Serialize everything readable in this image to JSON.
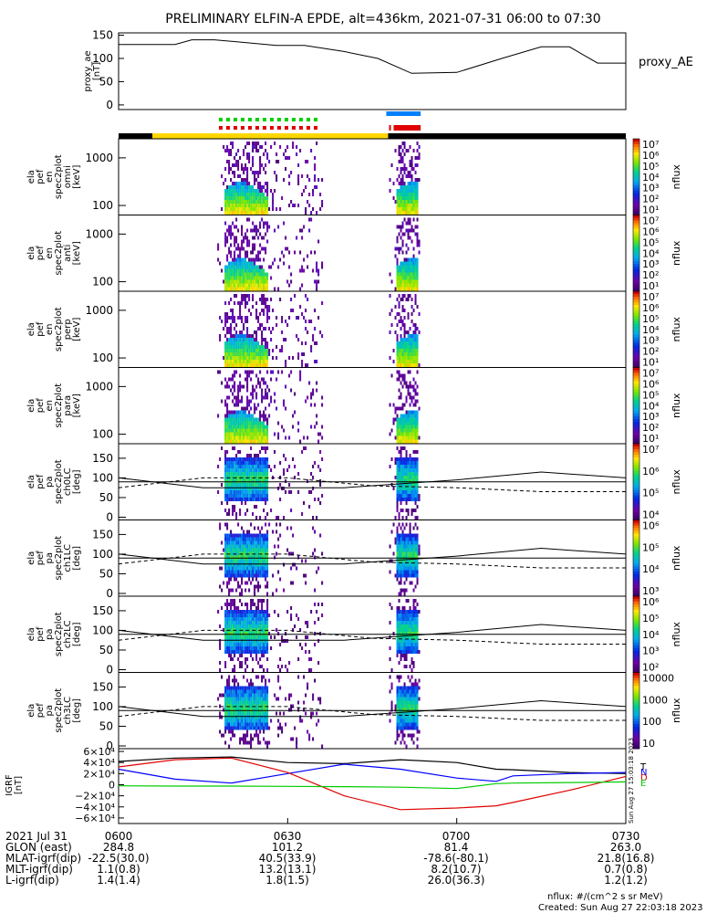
{
  "title": "PRELIMINARY ELFIN-A EPDE, alt=436km, 2021-07-31 06:00 to 07:30",
  "colors": {
    "bar_black": "#000000",
    "bar_yellow": "#ffd700",
    "green": "#00d000",
    "red": "#e00000",
    "blue": "#0080ff",
    "comp_black": "#000000",
    "comp_blue": "#0000ff",
    "comp_red": "#e00000",
    "comp_green": "#00cc00"
  },
  "proxy_ae": {
    "ylabel": "proxy_ae\n[nT]",
    "legend": "proxy_AE",
    "yticks": [
      "150",
      "100",
      "50",
      "0"
    ]
  },
  "spec_panels": [
    {
      "ylabel": "ela\npef\nen\nspec2plot\nomni\n[keV]",
      "yticks": [
        "1000",
        "100"
      ],
      "cbticks": [
        "10⁷",
        "10⁶",
        "10⁵",
        "10⁴",
        "10³",
        "10²",
        "10¹"
      ],
      "cbunit": "nflux"
    },
    {
      "ylabel": "ela\npef\nen\nspec2plot\nanti\n[keV]",
      "yticks": [
        "1000",
        "100"
      ],
      "cbticks": [
        "10⁷",
        "10⁶",
        "10⁵",
        "10⁴",
        "10³",
        "10²",
        "10¹"
      ],
      "cbunit": "nflux"
    },
    {
      "ylabel": "ela\npef\nen\nspec2plot\nperp\n[keV]",
      "yticks": [
        "1000",
        "100"
      ],
      "cbticks": [
        "10⁷",
        "10⁶",
        "10⁵",
        "10⁴",
        "10³",
        "10²",
        "10¹"
      ],
      "cbunit": "nflux"
    },
    {
      "ylabel": "ela\npef\nen\nspec2plot\npara\n[keV]",
      "yticks": [
        "1000",
        "100"
      ],
      "cbticks": [
        "10⁷",
        "10⁶",
        "10⁵",
        "10⁴",
        "10³",
        "10²",
        "10¹"
      ],
      "cbunit": "nflux"
    }
  ],
  "pa_panels": [
    {
      "ylabel": "ela\npef\npa\nspec2plot\nch0LC\n[deg]",
      "yticks": [
        "150",
        "100",
        "50",
        "0"
      ],
      "cbticks": [
        "10⁷",
        "10⁶",
        "10⁵",
        "10⁴"
      ],
      "cbunit": "nflux"
    },
    {
      "ylabel": "ela\npef\npa\nspec2plot\nch1LC\n[deg]",
      "yticks": [
        "150",
        "100",
        "50",
        "0"
      ],
      "cbticks": [
        "10⁶",
        "10⁵",
        "10⁴",
        "10³"
      ],
      "cbunit": "nflux"
    },
    {
      "ylabel": "ela\npef\npa\nspec2plot\nch2LC\n[deg]",
      "yticks": [
        "150",
        "100",
        "50",
        "0"
      ],
      "cbticks": [
        "10⁶",
        "10⁵",
        "10⁴",
        "10³",
        "10²"
      ],
      "cbunit": "nflux"
    },
    {
      "ylabel": "ela\npef\npa\nspec2plot\nch3LC\n[deg]",
      "yticks": [
        "150",
        "100",
        "50",
        "0"
      ],
      "cbticks": [
        "10000",
        "1000",
        "100",
        "10"
      ],
      "cbunit": "nflux"
    }
  ],
  "igrf": {
    "ylabel": "IGRF\n[nT]",
    "yticks": [
      "6×10⁴",
      "4×10⁴",
      "2×10⁴",
      "0",
      "−2×10⁴",
      "−4×10⁴",
      "−6×10⁴"
    ],
    "legend": [
      "T",
      "N",
      "D",
      "E"
    ],
    "side_label": "Sun Aug 27 15:03:18 2023"
  },
  "footer": {
    "rows": [
      {
        "label": "2021 Jul 31",
        "values": [
          "0600",
          "0630",
          "0700",
          "0730"
        ]
      },
      {
        "label": "GLON (east)",
        "values": [
          "284.8",
          "101.2",
          "81.4",
          "263.0"
        ]
      },
      {
        "label": "MLAT-igrf(dip)",
        "values": [
          "-22.5(30.0)",
          "40.5(33.9)",
          "-78.6(-80.1)",
          "21.8(16.8)"
        ]
      },
      {
        "label": "MLT-igrf(dip)",
        "values": [
          "1.1(0.8)",
          "13.2(13.1)",
          "8.2(10.7)",
          "0.7(0.8)"
        ]
      },
      {
        "label": "L-igrf(dip)",
        "values": [
          "1.4(1.4)",
          "1.8(1.5)",
          "26.0(36.3)",
          "1.2(1.2)"
        ]
      }
    ],
    "note1": "nflux: #/(cm^2 s sr MeV)",
    "note2": "Created: Sun Aug 27 22:03:18 2023"
  },
  "chart_data": {
    "type": "line",
    "time_range": [
      "2021-07-31 06:00",
      "2021-07-31 07:30"
    ],
    "proxy_ae": {
      "x_minutes": [
        0,
        10,
        13,
        17,
        28,
        33,
        40,
        46,
        52,
        60,
        68,
        75,
        80,
        85,
        90
      ],
      "values": [
        130,
        130,
        140,
        140,
        128,
        128,
        115,
        100,
        68,
        70,
        100,
        125,
        125,
        90,
        90
      ],
      "ylim": [
        -10,
        155
      ]
    },
    "flux_bars": {
      "yellow_span_min": [
        6.0,
        47.8
      ],
      "black_spans_min": [
        [
          0,
          6.0
        ],
        [
          47.8,
          90
        ]
      ],
      "green_dotted_min": [
        17.8,
        35.8
      ],
      "red_dotted_min": [
        17.8,
        35.8
      ],
      "blue_min": [
        47.5,
        53.6
      ],
      "red_min": [
        48.8,
        53.6
      ]
    },
    "spec_bursts": [
      {
        "start_min": 17.5,
        "end_min": 36.0,
        "core_min": [
          18.5,
          26.5
        ]
      },
      {
        "start_min": 48.0,
        "end_min": 53.5,
        "core_min": [
          49.0,
          53.0
        ]
      }
    ],
    "igrf": {
      "ylim": [
        -70000,
        65000
      ],
      "x_minutes": [
        0,
        10,
        20,
        30,
        40,
        50,
        60,
        67,
        70,
        80,
        90
      ],
      "series": [
        {
          "name": "T",
          "values": [
            42000,
            48000,
            50000,
            40000,
            38000,
            45000,
            40000,
            28000,
            27000,
            22000,
            20000
          ]
        },
        {
          "name": "N",
          "values": [
            28000,
            10000,
            3000,
            20000,
            37000,
            28000,
            12000,
            6000,
            16000,
            20000,
            22000
          ]
        },
        {
          "name": "D",
          "values": [
            32000,
            45000,
            48000,
            22000,
            -20000,
            -45000,
            -42000,
            -38000,
            -32000,
            -10000,
            15000
          ]
        },
        {
          "name": "E",
          "values": [
            -2000,
            -2500,
            -2500,
            -3000,
            -3500,
            -4500,
            -7000,
            2000,
            3000,
            4000,
            5000
          ]
        }
      ]
    }
  }
}
